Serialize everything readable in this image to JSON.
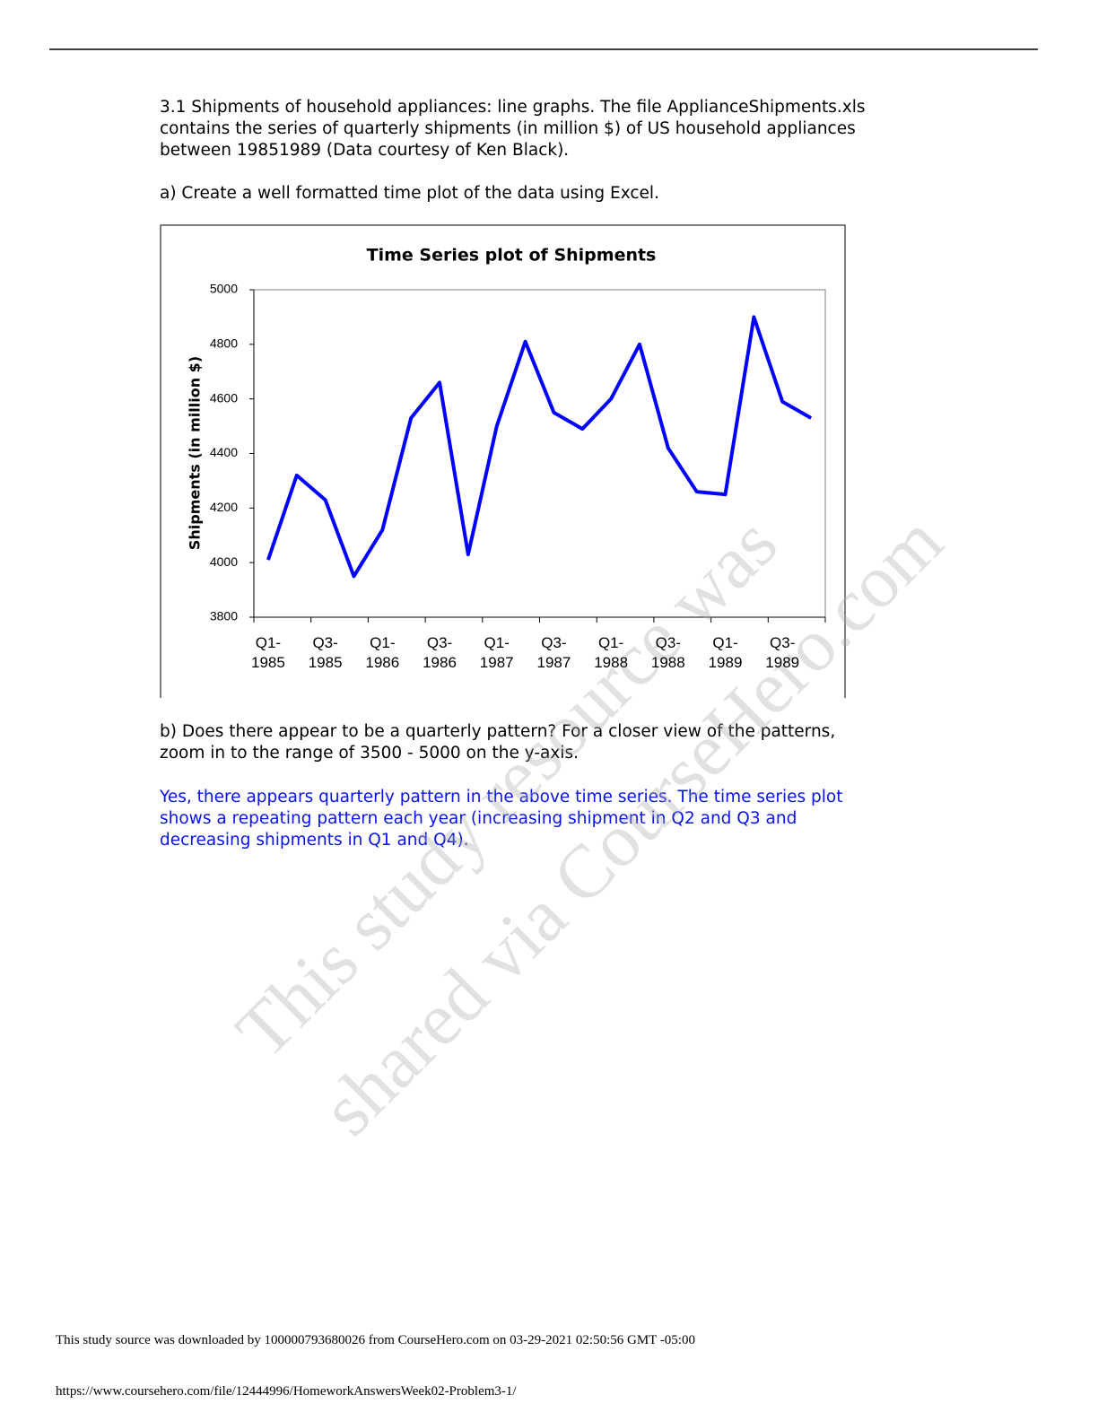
{
  "question": {
    "lines": [
      "3.1 Shipments of household appliances: line graphs. The file ApplianceShipments.xls",
      "contains the series of quarterly shipments (in million $) of US household appliances",
      "between 19851989 (Data courtesy of Ken Black)."
    ]
  },
  "part_a": "a) Create a well formatted time plot of the data using Excel.",
  "chart_data": {
    "type": "line",
    "title": "Time Series plot of Shipments",
    "y_label": "Shipments  (in million $)",
    "categories": [
      "Q1-\n1985",
      null,
      "Q3-\n1985",
      null,
      "Q1-\n1986",
      null,
      "Q3-\n1986",
      null,
      "Q1-\n1987",
      null,
      "Q3-\n1987",
      null,
      "Q1-\n1988",
      null,
      "Q3-\n1988",
      null,
      "Q1-\n1989",
      null,
      "Q3-\n1989",
      null
    ],
    "values": [
      4010,
      4320,
      4230,
      3950,
      4120,
      4530,
      4660,
      4030,
      4500,
      4810,
      4550,
      4490,
      4600,
      4800,
      4420,
      4260,
      4250,
      4900,
      4590,
      4530
    ],
    "color": "#0000ff",
    "ylim": [
      3800,
      5000
    ],
    "yticks": [
      3800,
      4000,
      4200,
      4400,
      4600,
      4800,
      5000
    ],
    "grid": false
  },
  "part_b": {
    "lines": [
      "b) Does there appear to be a quarterly pattern? For a closer view of the patterns,",
      "zoom in to the range of 3500 - 5000 on the y-axis."
    ]
  },
  "answer": {
    "lines": [
      "Yes, there appears quarterly pattern in the above time series. The time series plot",
      "shows a repeating pattern each year (increasing shipment in Q2 and Q3 and",
      "decreasing shipments in Q1 and Q4)."
    ]
  },
  "watermark": {
    "lines": [
      "This study resource was",
      "shared via CourseHero.com"
    ]
  },
  "footer": {
    "download_note": "This study source was downloaded by 100000793680026 from CourseHero.com on 03-29-2021 02:50:56 GMT -05:00",
    "url": "https://www.coursehero.com/file/12444996/HomeworkAnswersWeek02-Problem3-1/"
  }
}
